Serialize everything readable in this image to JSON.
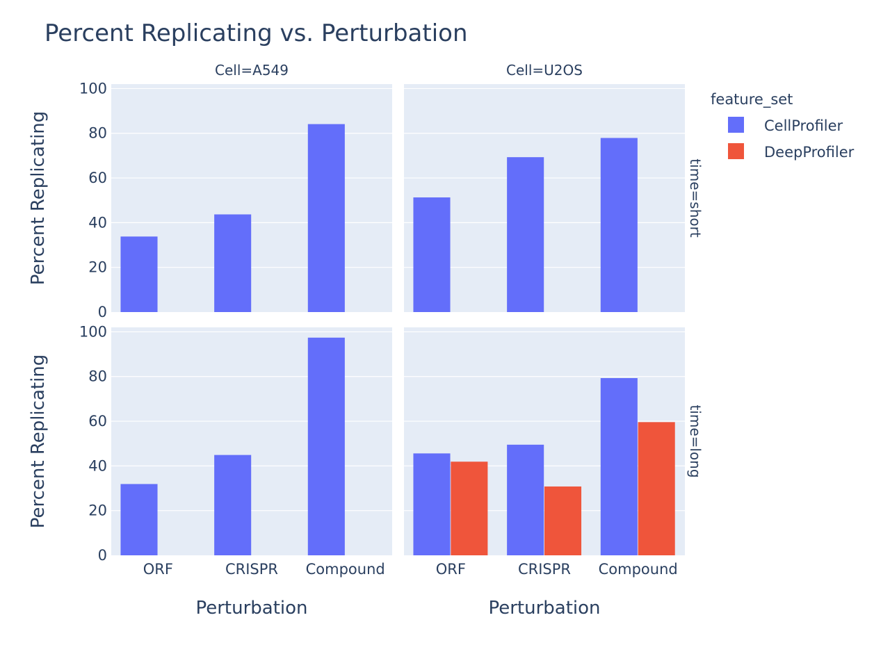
{
  "title": "Percent Replicating vs. Perturbation",
  "legend": {
    "title": "feature_set",
    "items": [
      "CellProfiler",
      "DeepProfiler"
    ]
  },
  "colors": {
    "CellProfiler": "#636efa",
    "DeepProfiler": "#ef553b",
    "plot_bg": "#e5ecf6",
    "grid": "#ffffff",
    "text": "#2a3f5f"
  },
  "chart_data": {
    "type": "bar",
    "barmode": "group",
    "title": "Percent Replicating vs. Perturbation",
    "xlabel": "Perturbation",
    "ylabel": "Percent Replicating",
    "categories": [
      "ORF",
      "CRISPR",
      "Compound"
    ],
    "ylim": [
      0,
      100
    ],
    "yticks": [
      0,
      20,
      40,
      60,
      80,
      100
    ],
    "grid": true,
    "legend_position": "top-right",
    "facet_columns": [
      "Cell=A549",
      "Cell=U2OS"
    ],
    "facet_rows": [
      "time=short",
      "time=long"
    ],
    "panels": [
      {
        "col": "Cell=A549",
        "row": "time=short",
        "series": [
          {
            "name": "CellProfiler",
            "values": [
              33.8,
              43.7,
              84.1
            ]
          },
          {
            "name": "DeepProfiler",
            "values": [
              null,
              null,
              null
            ]
          }
        ]
      },
      {
        "col": "Cell=U2OS",
        "row": "time=short",
        "series": [
          {
            "name": "CellProfiler",
            "values": [
              51.3,
              69.3,
              77.9
            ]
          },
          {
            "name": "DeepProfiler",
            "values": [
              null,
              null,
              null
            ]
          }
        ]
      },
      {
        "col": "Cell=A549",
        "row": "time=long",
        "series": [
          {
            "name": "CellProfiler",
            "values": [
              31.9,
              44.9,
              97.4
            ]
          },
          {
            "name": "DeepProfiler",
            "values": [
              null,
              null,
              null
            ]
          }
        ]
      },
      {
        "col": "Cell=U2OS",
        "row": "time=long",
        "series": [
          {
            "name": "CellProfiler",
            "values": [
              45.6,
              49.5,
              79.3
            ]
          },
          {
            "name": "DeepProfiler",
            "values": [
              41.9,
              30.8,
              59.6
            ]
          }
        ]
      }
    ]
  }
}
